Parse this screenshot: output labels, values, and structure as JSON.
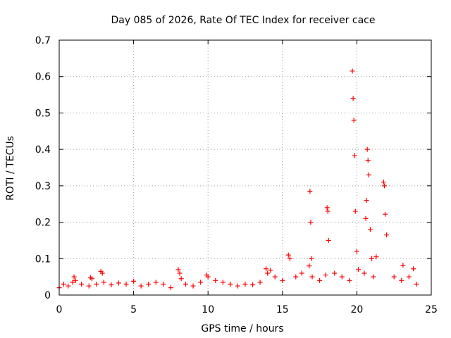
{
  "chart_data": {
    "type": "scatter",
    "title": "Day 085 of 2026, Rate Of TEC Index for receiver cace",
    "xlabel": "GPS time / hours",
    "ylabel": "ROTI / TECUs",
    "xlim": [
      0,
      25
    ],
    "ylim": [
      0,
      0.7
    ],
    "xticks": [
      0,
      5,
      10,
      15,
      20,
      25
    ],
    "yticks": [
      0,
      0.1,
      0.2,
      0.3,
      0.4,
      0.5,
      0.6,
      0.7
    ],
    "xtick_labels": [
      "0",
      "5",
      "10",
      "15",
      "20",
      "25"
    ],
    "ytick_labels": [
      "0",
      "0.1",
      "0.2",
      "0.3",
      "0.4",
      "0.5",
      "0.6",
      "0.7"
    ],
    "grid": true,
    "marker": "+",
    "color": "#ff0000",
    "series": [
      {
        "name": "ROTI",
        "x": [
          0.0,
          0.3,
          0.6,
          0.9,
          1.0,
          1.1,
          1.5,
          2.0,
          2.1,
          2.2,
          2.5,
          2.8,
          2.9,
          3.0,
          3.5,
          4.0,
          4.5,
          5.0,
          5.5,
          6.0,
          6.5,
          7.0,
          7.5,
          8.0,
          8.1,
          8.2,
          8.5,
          9.0,
          9.5,
          9.9,
          10.0,
          10.5,
          11.0,
          11.5,
          12.0,
          12.5,
          13.0,
          13.5,
          13.9,
          14.0,
          14.2,
          14.5,
          15.0,
          15.4,
          15.5,
          15.9,
          16.3,
          16.8,
          16.85,
          16.9,
          16.95,
          17.0,
          17.5,
          17.9,
          18.0,
          18.05,
          18.1,
          18.5,
          19.0,
          19.5,
          19.7,
          19.75,
          19.8,
          19.85,
          19.9,
          20.0,
          20.1,
          20.5,
          20.6,
          20.65,
          20.7,
          20.75,
          20.8,
          20.9,
          21.0,
          21.1,
          21.3,
          21.8,
          21.85,
          21.9,
          22.0,
          22.5,
          23.0,
          23.1,
          23.5,
          23.8,
          24.0
        ],
        "y": [
          0.02,
          0.03,
          0.025,
          0.035,
          0.05,
          0.04,
          0.03,
          0.025,
          0.048,
          0.045,
          0.03,
          0.065,
          0.06,
          0.035,
          0.028,
          0.033,
          0.03,
          0.038,
          0.025,
          0.03,
          0.035,
          0.03,
          0.02,
          0.07,
          0.06,
          0.045,
          0.03,
          0.025,
          0.035,
          0.055,
          0.05,
          0.04,
          0.035,
          0.03,
          0.025,
          0.03,
          0.028,
          0.035,
          0.072,
          0.06,
          0.068,
          0.05,
          0.04,
          0.11,
          0.1,
          0.05,
          0.06,
          0.08,
          0.285,
          0.2,
          0.1,
          0.05,
          0.04,
          0.055,
          0.24,
          0.23,
          0.15,
          0.06,
          0.05,
          0.04,
          0.615,
          0.54,
          0.48,
          0.383,
          0.23,
          0.12,
          0.07,
          0.06,
          0.21,
          0.26,
          0.4,
          0.37,
          0.33,
          0.18,
          0.1,
          0.05,
          0.105,
          0.31,
          0.3,
          0.222,
          0.165,
          0.05,
          0.04,
          0.082,
          0.05,
          0.072,
          0.03
        ]
      }
    ]
  }
}
